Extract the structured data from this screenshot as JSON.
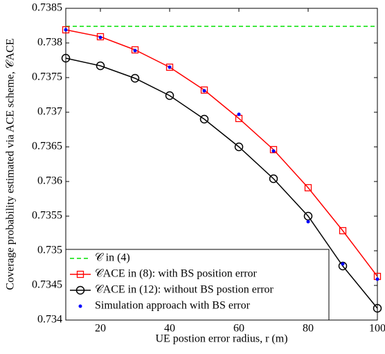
{
  "chart_data": {
    "type": "line",
    "xlabel": "UE postion error radius, r (m)",
    "ylabel": "Coverage probability estimated via ACE scheme, 𝒞ACE",
    "x": [
      10,
      20,
      30,
      40,
      50,
      60,
      70,
      80,
      90,
      100
    ],
    "xlim": [
      10,
      100
    ],
    "xticks": [
      20,
      40,
      60,
      80,
      100
    ],
    "ylim": [
      0.734,
      0.7385
    ],
    "yticks": [
      0.734,
      0.7345,
      0.735,
      0.7355,
      0.736,
      0.7365,
      0.737,
      0.7375,
      0.738,
      0.7385
    ],
    "legend": "lower left",
    "series": [
      {
        "name": "𝒞 in (4)",
        "color": "#00e000",
        "style": "dashed",
        "values": [
          0.73824,
          0.73824,
          0.73824,
          0.73824,
          0.73824,
          0.73824,
          0.73824,
          0.73824,
          0.73824,
          0.73824
        ]
      },
      {
        "name": "𝒞ACE in (8): with BS position error",
        "color": "#ff0000",
        "style": "square",
        "values": [
          0.73819,
          0.73809,
          0.7379,
          0.73765,
          0.73732,
          0.73691,
          0.73646,
          0.73591,
          0.73529,
          0.73463
        ]
      },
      {
        "name": "𝒞ACE in (12): without BS postion error",
        "color": "#000000",
        "style": "circle",
        "values": [
          0.73778,
          0.73767,
          0.73749,
          0.73724,
          0.7369,
          0.7365,
          0.73604,
          0.7355,
          0.73478,
          0.73417
        ]
      },
      {
        "name": "Simulation approach with BS error",
        "color": "#0000ff",
        "style": "dot",
        "values": [
          0.73819,
          0.73808,
          0.73789,
          0.73765,
          0.73731,
          0.73697,
          0.73644,
          0.73542,
          0.73481,
          0.73459
        ]
      }
    ]
  }
}
